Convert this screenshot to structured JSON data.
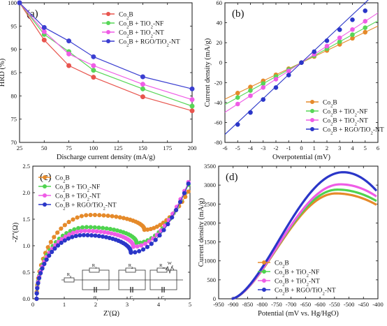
{
  "chart_data": [
    {
      "id": "a",
      "type": "line",
      "panel_label": "(a)",
      "xlabel": "Discharge current density (mA/g)",
      "ylabel": "HRD (%)",
      "xlim": [
        25,
        200
      ],
      "ylim": [
        70,
        100
      ],
      "xticks": [
        25,
        50,
        75,
        100,
        125,
        150,
        175,
        200
      ],
      "yticks": [
        70,
        75,
        80,
        85,
        90,
        95,
        100
      ],
      "legend_position": "top-right",
      "series": [
        {
          "name": "Co₂B",
          "color": "#e8554e",
          "marker": "circle",
          "x": [
            25,
            50,
            75,
            100,
            150,
            200
          ],
          "y": [
            100,
            92,
            86.5,
            84,
            79.8,
            76.8
          ]
        },
        {
          "name": "Co₂B + TiO₂-NF",
          "color": "#57d657",
          "marker": "circle",
          "x": [
            25,
            50,
            75,
            100,
            150,
            200
          ],
          "y": [
            100,
            93.2,
            89.5,
            85.5,
            81.5,
            77.8
          ]
        },
        {
          "name": "Co₂B + TiO₂-NT",
          "color": "#ef5ce6",
          "marker": "circle",
          "x": [
            25,
            50,
            75,
            100,
            150,
            200
          ],
          "y": [
            100,
            93.8,
            89,
            86.5,
            82.5,
            79.2
          ]
        },
        {
          "name": "Co₂B + RGO/TiO₂-NT",
          "color": "#3b3fd1",
          "marker": "circle",
          "x": [
            25,
            50,
            75,
            100,
            150,
            200
          ],
          "y": [
            100,
            94.7,
            91.8,
            88.4,
            84.1,
            81.5
          ]
        }
      ]
    },
    {
      "id": "b",
      "type": "scatter",
      "panel_label": "(b)",
      "xlabel": "Overpotential (mV)",
      "ylabel": "Current density (mA/g)",
      "xlim": [
        -6,
        6
      ],
      "ylim": [
        -80,
        60
      ],
      "xticks": [
        -6,
        -5,
        -4,
        -3,
        -2,
        -1,
        0,
        1,
        2,
        3,
        4,
        5,
        6
      ],
      "yticks": [
        -80,
        -60,
        -40,
        -20,
        0,
        20,
        40,
        60
      ],
      "legend_position": "bottom-right",
      "series": [
        {
          "name": "Co₂B",
          "color": "#e58a2a",
          "slope": 6.1,
          "x": [
            -5,
            -4,
            -3,
            -2,
            -1,
            0,
            1,
            2,
            3,
            4,
            5
          ],
          "y": [
            -30.5,
            -24.4,
            -18.3,
            -12.2,
            -6.1,
            0,
            6.1,
            12.2,
            18.3,
            24.4,
            30.5
          ]
        },
        {
          "name": "Co₂B + TiO₂-NF",
          "color": "#57d657",
          "slope": 7.0,
          "x": [
            -5,
            -4,
            -3,
            -2,
            -1,
            0,
            1,
            2,
            3,
            4,
            5
          ],
          "y": [
            -35,
            -28,
            -21,
            -14,
            -7,
            0,
            7,
            14,
            21,
            28,
            35
          ]
        },
        {
          "name": "Co₂B + TiO₂-NT",
          "color": "#ef5ce6",
          "slope": 8.3,
          "x": [
            -5,
            -4,
            -3,
            -2,
            -1,
            0,
            1,
            2,
            3,
            4,
            5
          ],
          "y": [
            -41.5,
            -33.2,
            -24.9,
            -16.6,
            -8.3,
            0,
            8.3,
            16.6,
            24.9,
            33.2,
            41.5
          ]
        },
        {
          "name": "Co₂B + RGO/TiO₂-NT",
          "color": "#2a36c8",
          "slope": 12.0,
          "x": [
            -5,
            -4,
            -3,
            -2,
            -1,
            0,
            1,
            2,
            3,
            4,
            5
          ],
          "y": [
            -62,
            -50,
            -37,
            -25,
            -12.5,
            0,
            11,
            22,
            33,
            43,
            52
          ]
        }
      ]
    },
    {
      "id": "c",
      "type": "scatter",
      "panel_label": "(c)",
      "xlabel": "Z'(Ω)",
      "ylabel": "-Z''(Ω)",
      "xlim": [
        0,
        5
      ],
      "ylim": [
        0,
        2.5
      ],
      "xticks": [
        0,
        1,
        2,
        3,
        4,
        5
      ],
      "yticks": [
        0.0,
        0.5,
        1.0,
        1.5,
        2.0,
        2.5
      ],
      "legend_position": "top-left",
      "circuit_labels": [
        "R₀",
        "R₁",
        "C₁",
        "R₂",
        "C₂",
        "Rₑₜ",
        "Wₒ",
        "C₃"
      ],
      "series": [
        {
          "name": "Co₂B",
          "color": "#e58a2a",
          "x_start": 0.12,
          "x_valley": 3.55,
          "y_peak": 1.58,
          "x_peak": 2.3,
          "y_valley": 1.3,
          "y_end": 2.02
        },
        {
          "name": "Co₂B + TiO₂-NF",
          "color": "#4fd34f",
          "x_start": 0.12,
          "x_valley": 3.3,
          "y_peak": 1.35,
          "x_peak": 2.05,
          "y_valley": 1.05,
          "y_end": 2.15
        },
        {
          "name": "Co₂B + TiO₂-NT",
          "color": "#ef5ce6",
          "x_start": 0.12,
          "x_valley": 3.2,
          "y_peak": 1.28,
          "x_peak": 2.0,
          "y_valley": 0.98,
          "y_end": 2.2
        },
        {
          "name": "Co₂B + RGO/TiO₂-NT",
          "color": "#2a36c8",
          "x_start": 0.12,
          "x_valley": 3.12,
          "y_peak": 1.2,
          "x_peak": 1.95,
          "y_valley": 0.87,
          "y_end": 2.17
        }
      ]
    },
    {
      "id": "d",
      "type": "line",
      "panel_label": "(d)",
      "xlabel": "Potential (mV vs. Hg/HgO)",
      "ylabel": "Current density (mA/g)",
      "xlim": [
        -950,
        -400
      ],
      "ylim": [
        0,
        3500
      ],
      "xticks": [
        -950,
        -900,
        -850,
        -800,
        -750,
        -700,
        -650,
        -600,
        -550,
        -500,
        -450,
        -400
      ],
      "yticks": [
        0,
        500,
        1000,
        1500,
        2000,
        2500,
        3000,
        3500
      ],
      "legend_position": "bottom-right",
      "series": [
        {
          "name": "Co₂B",
          "color": "#e58a2a",
          "peak_x": -545,
          "peak_y": 2780,
          "end_y": 2480
        },
        {
          "name": "Co₂B + TiO₂-NF",
          "color": "#4fd34f",
          "peak_x": -540,
          "peak_y": 2880,
          "end_y": 2580
        },
        {
          "name": "Co₂B + TiO₂-NT",
          "color": "#ef5ce6",
          "peak_x": -530,
          "peak_y": 3020,
          "end_y": 2700
        },
        {
          "name": "Co₂B + RGO/TiO₂-NT",
          "color": "#2a36c8",
          "peak_x": -520,
          "peak_y": 3340,
          "end_y": 2850
        }
      ]
    }
  ]
}
